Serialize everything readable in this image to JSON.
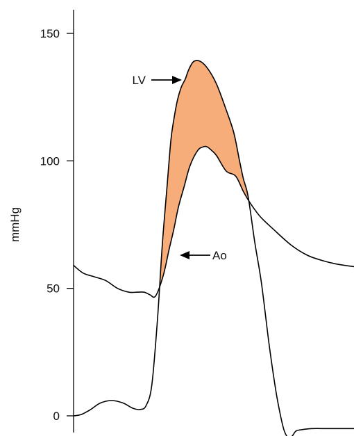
{
  "chart_data": {
    "type": "line",
    "title": "",
    "xlabel": "",
    "ylabel": "mmHg",
    "ylim": [
      0,
      150
    ],
    "yticks": [
      0,
      50,
      100,
      150
    ],
    "grid": false,
    "legend": "none",
    "shaded_region": {
      "between": [
        "LV",
        "Ao"
      ],
      "color": "#f7ad7a",
      "meaning": "LV pressure exceeds Ao pressure during ejection"
    },
    "annotations": [
      {
        "text": "LV",
        "target_series": "LV",
        "arrow": "points right"
      },
      {
        "text": "Ao",
        "target_series": "Ao",
        "arrow": "points left"
      }
    ],
    "series": [
      {
        "name": "LV",
        "color": "#000000",
        "x": [
          0,
          8,
          18,
          28,
          40,
          52,
          62,
          70,
          76,
          82,
          88,
          93,
          98,
          102,
          105,
          109,
          113,
          117,
          121,
          126,
          133,
          141,
          150,
          160,
          168,
          174,
          178,
          183,
          190,
          197,
          205,
          212,
          217,
          221,
          225,
          229,
          233,
          238,
          250,
          265,
          280,
          294
        ],
        "y": [
          0,
          0.5,
          2.5,
          5,
          6,
          5,
          3,
          2.5,
          4,
          12,
          38,
          67,
          90,
          108,
          116,
          124,
          129,
          132,
          136,
          139,
          139,
          136,
          130,
          120,
          111,
          100,
          93,
          86,
          68,
          52,
          28,
          10,
          0,
          -6,
          -8.5,
          -8,
          -6,
          -5.5,
          -5,
          -5,
          -5,
          -5
        ]
      },
      {
        "name": "Ao",
        "color": "#000000",
        "x": [
          0,
          10,
          22,
          34,
          46,
          58,
          66,
          74,
          80,
          86,
          94,
          100,
          105,
          110,
          116,
          122,
          130,
          136,
          140,
          145,
          150,
          160,
          170,
          178,
          186,
          196,
          210,
          228,
          245,
          260,
          276,
          294
        ],
        "y": [
          59,
          56,
          54.5,
          53,
          50,
          48.5,
          48.5,
          48.5,
          47.5,
          47,
          55,
          65,
          73,
          82,
          90,
          98,
          104,
          105.5,
          105.5,
          104,
          102,
          96,
          94,
          88,
          83,
          78,
          73,
          67,
          63,
          61,
          59.5,
          58.5
        ]
      }
    ]
  }
}
